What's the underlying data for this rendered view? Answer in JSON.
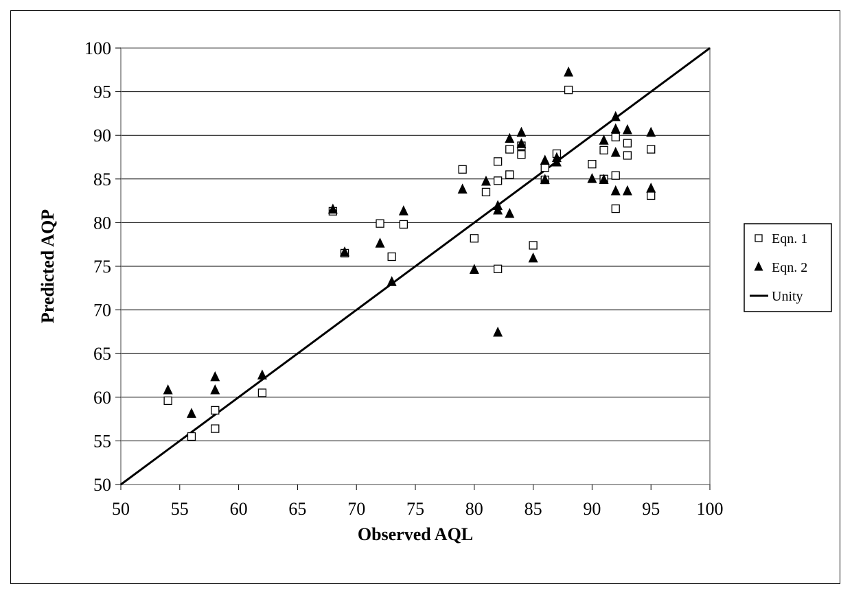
{
  "chart_data": {
    "type": "scatter",
    "title": "",
    "xlabel": "Observed AQL",
    "ylabel": "Predicted AQP",
    "xlim": [
      50,
      100
    ],
    "ylim": [
      50,
      100
    ],
    "xticks": [
      50,
      55,
      60,
      65,
      70,
      75,
      80,
      85,
      90,
      95,
      100
    ],
    "yticks": [
      50,
      55,
      60,
      65,
      70,
      75,
      80,
      85,
      90,
      95,
      100
    ],
    "grid": "horizontal",
    "legend_position": "right",
    "series": [
      {
        "name": "Eqn. 1",
        "marker": "open-square",
        "color": "#000000",
        "points": [
          [
            54,
            59.6
          ],
          [
            56,
            55.5
          ],
          [
            58,
            58.5
          ],
          [
            58,
            56.4
          ],
          [
            62,
            60.5
          ],
          [
            68,
            81.3
          ],
          [
            69,
            76.5
          ],
          [
            72,
            79.9
          ],
          [
            73,
            76.1
          ],
          [
            74,
            79.8
          ],
          [
            79,
            86.1
          ],
          [
            80,
            78.2
          ],
          [
            81,
            83.5
          ],
          [
            82,
            87.0
          ],
          [
            82,
            84.8
          ],
          [
            82,
            74.7
          ],
          [
            83,
            88.4
          ],
          [
            83,
            85.5
          ],
          [
            84,
            88.8
          ],
          [
            84,
            87.8
          ],
          [
            85,
            77.4
          ],
          [
            86,
            86.3
          ],
          [
            86,
            84.9
          ],
          [
            87,
            87.9
          ],
          [
            88,
            95.2
          ],
          [
            90,
            86.7
          ],
          [
            91,
            88.3
          ],
          [
            91,
            85.0
          ],
          [
            92,
            89.8
          ],
          [
            92,
            85.4
          ],
          [
            92,
            81.6
          ],
          [
            93,
            89.1
          ],
          [
            93,
            87.7
          ],
          [
            95,
            88.4
          ],
          [
            95,
            83.1
          ]
        ]
      },
      {
        "name": "Eqn. 2",
        "marker": "filled-triangle",
        "color": "#000000",
        "points": [
          [
            54,
            60.8
          ],
          [
            56,
            58.1
          ],
          [
            58,
            62.3
          ],
          [
            58,
            60.8
          ],
          [
            62,
            62.5
          ],
          [
            68,
            81.5
          ],
          [
            69,
            76.6
          ],
          [
            72,
            77.6
          ],
          [
            73,
            73.2
          ],
          [
            74,
            81.3
          ],
          [
            79,
            83.8
          ],
          [
            80,
            74.6
          ],
          [
            81,
            84.7
          ],
          [
            82,
            81.9
          ],
          [
            82,
            81.4
          ],
          [
            82,
            67.4
          ],
          [
            83,
            89.6
          ],
          [
            83,
            81.0
          ],
          [
            84,
            90.3
          ],
          [
            84,
            89.0
          ],
          [
            85,
            75.9
          ],
          [
            86,
            87.1
          ],
          [
            86,
            84.9
          ],
          [
            87,
            87.4
          ],
          [
            87,
            86.9
          ],
          [
            88,
            97.2
          ],
          [
            90,
            85.0
          ],
          [
            91,
            89.4
          ],
          [
            91,
            84.9
          ],
          [
            92,
            92.1
          ],
          [
            92,
            90.7
          ],
          [
            92,
            88.0
          ],
          [
            92,
            83.6
          ],
          [
            93,
            90.6
          ],
          [
            93,
            83.6
          ],
          [
            95,
            90.3
          ],
          [
            95,
            83.9
          ]
        ]
      },
      {
        "name": "Unity",
        "marker": "line",
        "color": "#000000",
        "points": [
          [
            50,
            50
          ],
          [
            100,
            100
          ]
        ]
      }
    ]
  }
}
